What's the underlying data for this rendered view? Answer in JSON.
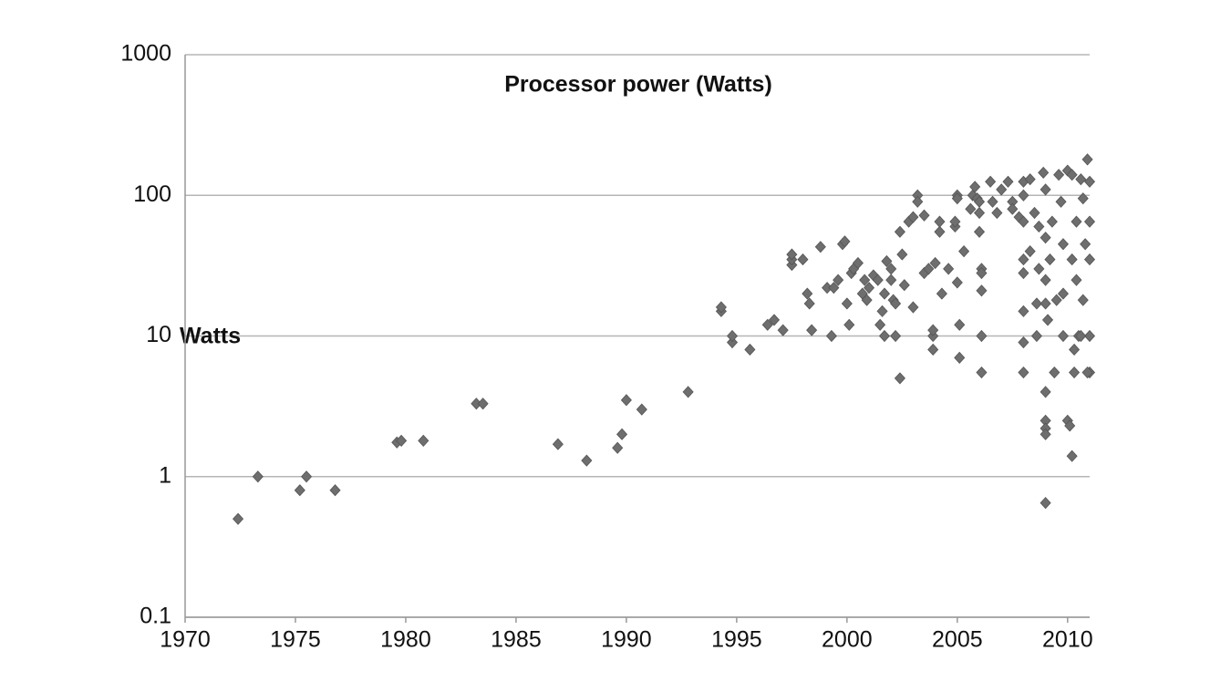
{
  "chart_data": {
    "type": "scatter",
    "title": "Processor power (Watts)",
    "y_label": "Watts",
    "log_scale": "y",
    "grid": true,
    "color": "#6e6e6e",
    "xlim": [
      1970,
      2011
    ],
    "xticks": [
      1970,
      1975,
      1980,
      1985,
      1990,
      1995,
      2000,
      2005,
      2010
    ],
    "ylim": [
      0.1,
      1000
    ],
    "yticks": [
      0.1,
      1,
      10,
      100,
      1000
    ],
    "x": [
      1972.4,
      1973.3,
      1975.2,
      1975.5,
      1976.8,
      1979.6,
      1979.8,
      1980.8,
      1983.2,
      1983.5,
      1986.9,
      1988.2,
      1989.6,
      1989.8,
      1990.0,
      1990.7,
      1992.8,
      1994.3,
      1994.3,
      1994.8,
      1994.8,
      1995.6,
      1996.4,
      1996.7,
      1997.1,
      1997.5,
      1997.5,
      1997.5,
      1998.2,
      1998.3,
      1998.4,
      1998.0,
      1998.8,
      1999.1,
      1999.4,
      1999.6,
      1999.3,
      1999.8,
      1999.9,
      2000.0,
      2000.1,
      2000.2,
      2000.3,
      2000.5,
      2000.7,
      2000.8,
      2000.9,
      2001.0,
      2001.2,
      2001.4,
      2001.5,
      2001.6,
      2001.7,
      2001.8,
      2001.7,
      2002.0,
      2002.0,
      2002.1,
      2002.2,
      2002.2,
      2002.4,
      2002.4,
      2002.5,
      2002.6,
      2002.8,
      2003.0,
      2003.0,
      2003.2,
      2003.2,
      2003.5,
      2003.5,
      2003.7,
      2003.9,
      2003.9,
      2003.9,
      2004.0,
      2004.2,
      2004.2,
      2004.3,
      2004.6,
      2004.9,
      2004.9,
      2005.0,
      2005.0,
      2005.0,
      2005.1,
      2005.1,
      2005.3,
      2005.6,
      2005.7,
      2005.8,
      2005.9,
      2006.0,
      2006.0,
      2006.1,
      2006.1,
      2006.1,
      2006.0,
      2006.1,
      2006.1,
      2006.5,
      2006.6,
      2006.8,
      2007.0,
      2007.3,
      2007.5,
      2007.5,
      2007.8,
      2008.0,
      2008.0,
      2008.0,
      2008.0,
      2008.0,
      2008.0,
      2008.0,
      2008.0,
      2008.3,
      2008.3,
      2008.5,
      2008.6,
      2008.6,
      2008.7,
      2008.7,
      2008.9,
      2009.0,
      2009.0,
      2009.0,
      2009.0,
      2009.0,
      2009.0,
      2009.0,
      2009.0,
      2009.0,
      2009.1,
      2009.2,
      2009.3,
      2009.4,
      2009.5,
      2009.6,
      2009.7,
      2009.8,
      2009.8,
      2009.8,
      2010.0,
      2010.0,
      2010.1,
      2010.2,
      2010.2,
      2010.2,
      2010.3,
      2010.3,
      2010.4,
      2010.4,
      2010.5,
      2010.6,
      2010.7,
      2010.7,
      2010.8,
      2010.9,
      2011.0,
      2011.0,
      2011.0,
      2011.0,
      2011.0,
      2010.9,
      2010.6
    ],
    "values": [
      0.5,
      1,
      0.8,
      1,
      0.8,
      1.75,
      1.8,
      1.8,
      3.3,
      3.3,
      1.7,
      1.3,
      1.6,
      2,
      3.5,
      3,
      4,
      15,
      16,
      9,
      10,
      8,
      12,
      13,
      11,
      32,
      35,
      38,
      20,
      17,
      11,
      35,
      43,
      22,
      22,
      25,
      10,
      45,
      47,
      17,
      12,
      28,
      30,
      33,
      20,
      25,
      18,
      22,
      27,
      25,
      12,
      15,
      10,
      34,
      20,
      30,
      25,
      18,
      17,
      10,
      5,
      55,
      38,
      23,
      65,
      70,
      16,
      100,
      90,
      72,
      28,
      30,
      10,
      11,
      8,
      33,
      65,
      55,
      20,
      30,
      60,
      65,
      100,
      95,
      24,
      12,
      7,
      40,
      80,
      100,
      115,
      95,
      75,
      90,
      30,
      28,
      21,
      55,
      10,
      5.5,
      125,
      90,
      75,
      110,
      125,
      90,
      80,
      70,
      125,
      100,
      65,
      35,
      28,
      15,
      9,
      5.5,
      130,
      40,
      75,
      17,
      10,
      30,
      60,
      145,
      110,
      50,
      25,
      17,
      4,
      2.5,
      2.2,
      2,
      0.65,
      13,
      35,
      65,
      5.5,
      18,
      140,
      90,
      45,
      20,
      10,
      150,
      2.5,
      2.3,
      1.4,
      140,
      35,
      8,
      5.5,
      65,
      25,
      10,
      130,
      95,
      18,
      45,
      180,
      125,
      35,
      10,
      5.5,
      65,
      5.5,
      10
    ]
  }
}
